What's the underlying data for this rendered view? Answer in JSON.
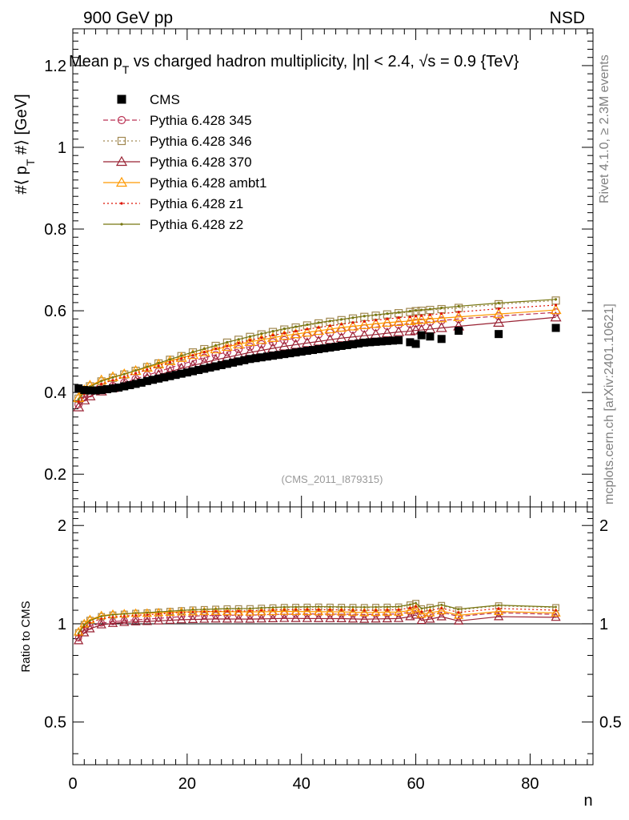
{
  "header": {
    "left_text": "900 GeV pp",
    "right_text": "NSD",
    "title": "Mean p_T vs charged hadron multiplicity, |η| < 2.4, √s = 0.9 {TeV}",
    "title_parts": {
      "a": "Mean p",
      "sub": "T",
      "b": " vs charged hadron multiplicity, ",
      "c": "η",
      "d": "| < 2.4, ",
      "e": "s = 0.9 {TeV}"
    }
  },
  "side_labels": {
    "rivet": "Rivet 4.1.0, ≥ 2.3M events",
    "mcplots": "mcplots.cern.ch [arXiv:2401.10621]"
  },
  "watermark": "(CMS_2011_I879315)",
  "colors": {
    "cms": "#000000",
    "p345": "#bb3355",
    "p346": "#a08850",
    "p370": "#992233",
    "ambt1": "#ff9900",
    "z1": "#dd1100",
    "z2": "#777711"
  },
  "chart_data": [
    {
      "type": "line",
      "name": "main",
      "title": "Mean p_T vs charged hadron multiplicity, |η| < 2.4, √s = 0.9 {TeV}",
      "xlabel": "n",
      "ylabel_parts": {
        "a": "#⟨ p",
        "sub": "T",
        "b": " #⟩ [GeV]"
      },
      "xlim": [
        0,
        91
      ],
      "ylim": [
        0.12,
        1.29
      ],
      "yticks": [
        0.2,
        0.4,
        0.6,
        0.8,
        1.0,
        1.2
      ],
      "ytick_labels": [
        "0.2",
        "0.4",
        "0.6",
        "0.8",
        "1",
        "1.2"
      ],
      "legend": "top-left",
      "series": [
        {
          "key": "cms",
          "name": "CMS",
          "marker": "square-filled",
          "style": "none",
          "x": [
            1,
            2,
            3,
            4,
            5,
            6,
            7,
            8,
            9,
            10,
            11,
            12,
            13,
            14,
            15,
            16,
            17,
            18,
            19,
            20,
            21,
            22,
            23,
            24,
            25,
            26,
            27,
            28,
            29,
            30,
            31,
            32,
            33,
            34,
            35,
            36,
            37,
            38,
            39,
            40,
            41,
            42,
            43,
            44,
            45,
            46,
            47,
            48,
            49,
            50,
            51,
            52,
            53,
            54,
            55,
            56,
            57,
            59,
            60,
            61,
            62.5,
            64.5,
            67.5,
            74.5,
            84.5
          ],
          "y": [
            0.41,
            0.406,
            0.405,
            0.405,
            0.406,
            0.408,
            0.41,
            0.412,
            0.415,
            0.418,
            0.421,
            0.424,
            0.428,
            0.431,
            0.434,
            0.437,
            0.44,
            0.443,
            0.446,
            0.449,
            0.452,
            0.455,
            0.458,
            0.461,
            0.464,
            0.467,
            0.47,
            0.473,
            0.476,
            0.479,
            0.482,
            0.484,
            0.486,
            0.488,
            0.49,
            0.492,
            0.494,
            0.496,
            0.498,
            0.5,
            0.502,
            0.504,
            0.506,
            0.508,
            0.51,
            0.512,
            0.514,
            0.516,
            0.518,
            0.52,
            0.522,
            0.523,
            0.524,
            0.525,
            0.526,
            0.527,
            0.528,
            0.523,
            0.519,
            0.54,
            0.537,
            0.531,
            0.551,
            0.543,
            0.558
          ]
        },
        {
          "key": "p345",
          "name": "Pythia 6.428 345",
          "marker": "circle-open",
          "style": "dashed",
          "x": [
            1,
            2,
            3,
            5,
            7,
            9,
            11,
            13,
            15,
            17,
            19,
            21,
            23,
            25,
            27,
            29,
            31,
            33,
            35,
            37,
            39,
            41,
            43,
            45,
            47,
            49,
            51,
            53,
            55,
            57,
            59,
            60,
            61,
            62.5,
            64.5,
            67.5,
            74.5,
            84.5
          ],
          "y": [
            0.371,
            0.388,
            0.398,
            0.408,
            0.416,
            0.424,
            0.433,
            0.442,
            0.451,
            0.46,
            0.469,
            0.477,
            0.485,
            0.492,
            0.499,
            0.506,
            0.512,
            0.518,
            0.523,
            0.528,
            0.533,
            0.538,
            0.542,
            0.546,
            0.55,
            0.554,
            0.557,
            0.56,
            0.563,
            0.566,
            0.568,
            0.57,
            0.571,
            0.573,
            0.576,
            0.58,
            0.587,
            0.596
          ]
        },
        {
          "key": "p346",
          "name": "Pythia 6.428 346",
          "marker": "square-open",
          "style": "dotted",
          "x": [
            1,
            2,
            3,
            5,
            7,
            9,
            11,
            13,
            15,
            17,
            19,
            21,
            23,
            25,
            27,
            29,
            31,
            33,
            35,
            37,
            39,
            41,
            43,
            45,
            47,
            49,
            51,
            53,
            55,
            57,
            59,
            60,
            61,
            62.5,
            64.5,
            67.5,
            74.5,
            84.5
          ],
          "y": [
            0.385,
            0.404,
            0.415,
            0.427,
            0.436,
            0.444,
            0.453,
            0.462,
            0.471,
            0.48,
            0.489,
            0.498,
            0.506,
            0.514,
            0.522,
            0.529,
            0.536,
            0.542,
            0.548,
            0.554,
            0.559,
            0.564,
            0.569,
            0.573,
            0.577,
            0.581,
            0.585,
            0.588,
            0.591,
            0.594,
            0.597,
            0.599,
            0.6,
            0.602,
            0.604,
            0.607,
            0.616,
            0.625
          ]
        },
        {
          "key": "p370",
          "name": "Pythia 6.428 370",
          "marker": "triangle-open",
          "style": "solid",
          "x": [
            1,
            2,
            3,
            5,
            7,
            9,
            11,
            13,
            15,
            17,
            19,
            21,
            23,
            25,
            27,
            29,
            31,
            33,
            35,
            37,
            39,
            41,
            43,
            45,
            47,
            49,
            51,
            53,
            55,
            57,
            59,
            60,
            61,
            62.5,
            64.5,
            67.5,
            74.5,
            84.5
          ],
          "y": [
            0.364,
            0.381,
            0.391,
            0.403,
            0.411,
            0.419,
            0.427,
            0.435,
            0.443,
            0.451,
            0.459,
            0.466,
            0.473,
            0.48,
            0.486,
            0.492,
            0.498,
            0.503,
            0.508,
            0.513,
            0.517,
            0.521,
            0.525,
            0.529,
            0.533,
            0.536,
            0.539,
            0.542,
            0.545,
            0.548,
            0.55,
            0.552,
            0.553,
            0.555,
            0.558,
            0.562,
            0.571,
            0.584
          ]
        },
        {
          "key": "ambt1",
          "name": "Pythia 6.428 ambt1",
          "marker": "triangle-open",
          "style": "solid",
          "x": [
            1,
            2,
            3,
            5,
            7,
            9,
            11,
            13,
            15,
            17,
            19,
            21,
            23,
            25,
            27,
            29,
            31,
            33,
            35,
            37,
            39,
            41,
            43,
            45,
            47,
            49,
            51,
            53,
            55,
            57,
            59,
            60,
            61,
            62.5,
            64.5,
            67.5,
            74.5,
            84.5
          ],
          "y": [
            0.387,
            0.406,
            0.417,
            0.43,
            0.438,
            0.445,
            0.453,
            0.461,
            0.469,
            0.477,
            0.485,
            0.492,
            0.499,
            0.506,
            0.512,
            0.518,
            0.524,
            0.529,
            0.534,
            0.539,
            0.543,
            0.547,
            0.551,
            0.555,
            0.559,
            0.562,
            0.565,
            0.568,
            0.571,
            0.573,
            0.575,
            0.577,
            0.578,
            0.58,
            0.582,
            0.585,
            0.592,
            0.602
          ]
        },
        {
          "key": "z1",
          "name": "Pythia 6.428 z1",
          "marker": "dot",
          "style": "dotted",
          "x": [
            1,
            2,
            3,
            5,
            7,
            9,
            11,
            13,
            15,
            17,
            19,
            21,
            23,
            25,
            27,
            29,
            31,
            33,
            35,
            37,
            39,
            41,
            43,
            45,
            47,
            49,
            51,
            53,
            55,
            57,
            59,
            60,
            61,
            62.5,
            64.5,
            67.5,
            74.5,
            84.5
          ],
          "y": [
            0.378,
            0.397,
            0.408,
            0.421,
            0.43,
            0.438,
            0.447,
            0.456,
            0.465,
            0.474,
            0.483,
            0.491,
            0.499,
            0.507,
            0.514,
            0.521,
            0.528,
            0.534,
            0.54,
            0.545,
            0.55,
            0.555,
            0.559,
            0.563,
            0.567,
            0.571,
            0.574,
            0.577,
            0.58,
            0.583,
            0.585,
            0.587,
            0.588,
            0.59,
            0.593,
            0.597,
            0.605,
            0.614
          ]
        },
        {
          "key": "z2",
          "name": "Pythia 6.428 z2",
          "marker": "dot",
          "style": "solid",
          "x": [
            1,
            2,
            3,
            5,
            7,
            9,
            11,
            13,
            15,
            17,
            19,
            21,
            23,
            25,
            27,
            29,
            31,
            33,
            35,
            37,
            39,
            41,
            43,
            45,
            47,
            49,
            51,
            53,
            55,
            57,
            59,
            60,
            61,
            62.5,
            64.5,
            67.5,
            74.5,
            84.5
          ],
          "y": [
            0.383,
            0.402,
            0.414,
            0.428,
            0.437,
            0.445,
            0.454,
            0.463,
            0.472,
            0.481,
            0.49,
            0.499,
            0.507,
            0.515,
            0.523,
            0.53,
            0.537,
            0.544,
            0.55,
            0.556,
            0.561,
            0.566,
            0.571,
            0.575,
            0.579,
            0.583,
            0.587,
            0.59,
            0.593,
            0.596,
            0.599,
            0.601,
            0.602,
            0.604,
            0.607,
            0.611,
            0.619,
            0.628
          ]
        }
      ]
    },
    {
      "type": "line",
      "name": "ratio",
      "xlabel": "n",
      "ylabel": "Ratio to CMS",
      "xlim": [
        0,
        91
      ],
      "ylim": [
        0.37,
        2.28
      ],
      "yticks": [
        0.5,
        1.0,
        2.0
      ],
      "ytick_labels": [
        "0.5",
        "1",
        "2"
      ],
      "xticks": [
        0,
        20,
        40,
        60,
        80
      ],
      "xtick_labels": [
        "0",
        "20",
        "40",
        "60",
        "80"
      ],
      "reference_line": 1.0
    }
  ]
}
